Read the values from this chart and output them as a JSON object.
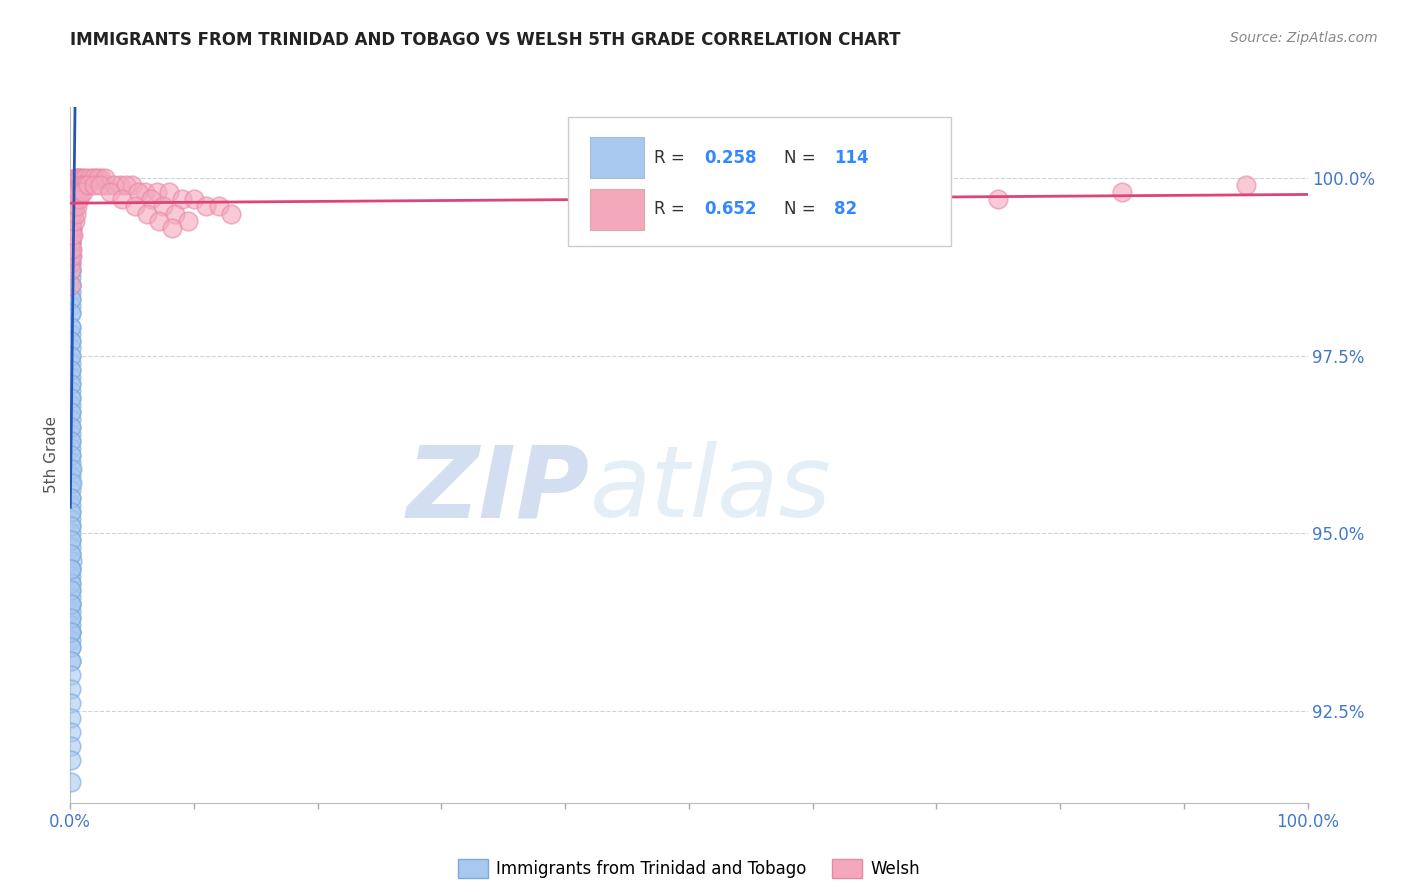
{
  "title": "IMMIGRANTS FROM TRINIDAD AND TOBAGO VS WELSH 5TH GRADE CORRELATION CHART",
  "source": "Source: ZipAtlas.com",
  "ylabel": "5th Grade",
  "y_ticks": [
    92.5,
    95.0,
    97.5,
    100.0
  ],
  "y_tick_labels": [
    "92.5%",
    "95.0%",
    "97.5%",
    "100.0%"
  ],
  "xlim": [
    0.0,
    100.0
  ],
  "ylim": [
    91.2,
    101.0
  ],
  "blue_R": 0.258,
  "blue_N": 114,
  "pink_R": 0.652,
  "pink_N": 82,
  "blue_color": "#A8C8F0",
  "pink_color": "#F4A8BC",
  "blue_edge_color": "#7AAADE",
  "pink_edge_color": "#E888A8",
  "blue_line_color": "#2255BB",
  "pink_line_color": "#DD4477",
  "legend_label_blue": "Immigrants from Trinidad and Tobago",
  "legend_label_pink": "Welsh",
  "watermark_zip": "ZIP",
  "watermark_atlas": "atlas",
  "blue_scatter_x": [
    0.05,
    0.05,
    0.1,
    0.05,
    0.08,
    0.12,
    0.05,
    0.06,
    0.08,
    0.1,
    0.05,
    0.06,
    0.07,
    0.05,
    0.05,
    0.06,
    0.08,
    0.05,
    0.05,
    0.07,
    0.05,
    0.05,
    0.06,
    0.05,
    0.06,
    0.05,
    0.07,
    0.05,
    0.06,
    0.05,
    0.05,
    0.06,
    0.05,
    0.06,
    0.05,
    0.06,
    0.07,
    0.05,
    0.05,
    0.05,
    0.06,
    0.05,
    0.05,
    0.07,
    0.05,
    0.05,
    0.06,
    0.05,
    0.06,
    0.07,
    0.05,
    0.05,
    0.05,
    0.08,
    0.06,
    0.05,
    0.1,
    0.08,
    0.05,
    0.05,
    0.06,
    0.05,
    0.05,
    0.07,
    0.05,
    0.05,
    0.06,
    0.08,
    0.05,
    0.05,
    0.05,
    0.06,
    0.07,
    0.05,
    0.05,
    0.05,
    0.06,
    0.05,
    0.05,
    0.06,
    0.05,
    0.05,
    0.06,
    0.05,
    0.06,
    0.07,
    0.05,
    0.1,
    0.12,
    0.08,
    0.05,
    0.05,
    0.06,
    0.05,
    0.07,
    0.05,
    0.05,
    0.05,
    0.05,
    0.06,
    0.05,
    0.06,
    0.05,
    0.08,
    0.05,
    0.06,
    0.05,
    0.05,
    0.07,
    0.08,
    0.05,
    0.06,
    0.05,
    0.05
  ],
  "blue_scatter_y": [
    99.8,
    99.6,
    99.7,
    99.5,
    99.9,
    99.8,
    99.4,
    99.6,
    99.5,
    99.3,
    99.2,
    99.4,
    99.1,
    99.0,
    98.8,
    98.9,
    98.7,
    98.5,
    98.6,
    98.4,
    98.3,
    98.2,
    98.1,
    97.9,
    97.8,
    97.7,
    97.6,
    97.5,
    97.4,
    97.3,
    97.2,
    97.1,
    97.0,
    96.9,
    96.8,
    96.7,
    96.6,
    96.5,
    96.4,
    96.3,
    96.2,
    96.1,
    96.0,
    95.9,
    95.8,
    95.7,
    95.6,
    95.5,
    95.4,
    95.3,
    95.2,
    95.1,
    95.0,
    94.9,
    94.8,
    94.7,
    94.6,
    94.5,
    94.4,
    94.3,
    94.2,
    94.1,
    94.0,
    93.9,
    93.8,
    93.7,
    93.6,
    93.5,
    93.4,
    99.5,
    99.3,
    99.1,
    98.9,
    98.7,
    98.5,
    98.3,
    98.1,
    97.9,
    97.7,
    97.5,
    97.3,
    97.1,
    96.9,
    96.7,
    96.5,
    96.3,
    96.1,
    95.9,
    95.7,
    95.5,
    95.3,
    95.1,
    94.9,
    94.7,
    94.5,
    94.3,
    94.0,
    93.6,
    93.2,
    94.5,
    94.2,
    94.0,
    93.8,
    93.6,
    93.4,
    93.2,
    93.0,
    92.8,
    92.6,
    92.4,
    92.2,
    92.0,
    91.8,
    91.5
  ],
  "pink_scatter_x": [
    0.05,
    0.06,
    0.08,
    0.1,
    0.12,
    0.15,
    0.18,
    0.2,
    0.25,
    0.3,
    0.4,
    0.5,
    0.6,
    0.7,
    0.8,
    1.0,
    1.2,
    1.5,
    2.0,
    2.5,
    3.0,
    4.0,
    5.0,
    6.0,
    7.0,
    8.0,
    9.0,
    10.0,
    11.0,
    12.0,
    13.0,
    0.05,
    0.07,
    0.09,
    0.11,
    0.14,
    0.17,
    0.22,
    0.28,
    0.35,
    0.45,
    0.55,
    0.65,
    0.75,
    0.9,
    1.1,
    1.3,
    1.8,
    2.2,
    2.8,
    3.5,
    4.5,
    5.5,
    6.5,
    7.5,
    8.5,
    9.5,
    0.06,
    0.08,
    0.12,
    0.16,
    0.25,
    0.38,
    0.48,
    0.58,
    0.68,
    0.85,
    1.05,
    1.4,
    1.9,
    2.4,
    3.2,
    4.2,
    5.2,
    6.2,
    7.2,
    8.2,
    55.0,
    65.0,
    75.0,
    85.0,
    95.0
  ],
  "pink_scatter_y": [
    99.2,
    99.4,
    99.5,
    99.6,
    99.7,
    99.7,
    99.8,
    99.8,
    99.9,
    99.9,
    100.0,
    100.0,
    100.0,
    100.0,
    100.0,
    100.0,
    100.0,
    100.0,
    100.0,
    100.0,
    99.9,
    99.9,
    99.9,
    99.8,
    99.8,
    99.8,
    99.7,
    99.7,
    99.6,
    99.6,
    99.5,
    98.8,
    99.0,
    99.1,
    99.2,
    99.3,
    99.4,
    99.5,
    99.6,
    99.7,
    99.8,
    99.8,
    99.8,
    99.9,
    99.9,
    99.9,
    99.9,
    100.0,
    100.0,
    100.0,
    99.9,
    99.9,
    99.8,
    99.7,
    99.6,
    99.5,
    99.4,
    98.5,
    98.7,
    98.9,
    99.0,
    99.2,
    99.4,
    99.5,
    99.6,
    99.7,
    99.8,
    99.8,
    99.9,
    99.9,
    99.9,
    99.8,
    99.7,
    99.6,
    99.5,
    99.4,
    99.3,
    99.5,
    99.6,
    99.7,
    99.8,
    99.9
  ]
}
